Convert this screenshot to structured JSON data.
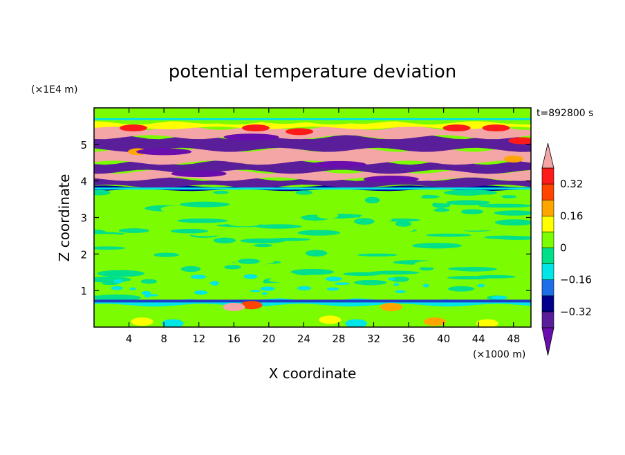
{
  "chart_data": {
    "type": "heatmap",
    "title": "potential temperature deviation",
    "xlabel": "X coordinate",
    "ylabel": "Z coordinate",
    "x_unit": "(×1000 m)",
    "y_unit": "(×1E4 m)",
    "time_label": "t=892800 s",
    "xlim": [
      0,
      50
    ],
    "ylim": [
      0,
      6
    ],
    "x_ticks": [
      4,
      8,
      12,
      16,
      20,
      24,
      28,
      32,
      36,
      40,
      44,
      48
    ],
    "y_ticks": [
      1,
      2,
      3,
      4,
      5
    ],
    "colorbar": {
      "levels": [
        -0.4,
        -0.32,
        -0.24,
        -0.16,
        -0.08,
        0,
        0.08,
        0.16,
        0.24,
        0.32,
        0.4
      ],
      "tick_labels": [
        "0.32",
        "0.16",
        "0",
        "−0.16",
        "−0.32"
      ],
      "tick_values": [
        0.32,
        0.16,
        0,
        -0.16,
        -0.32
      ],
      "colors_low_to_high": [
        "#6a0dad",
        "#5a1e9a",
        "#00008b",
        "#1e6ee8",
        "#00e5e5",
        "#00e08a",
        "#7cfc00",
        "#ffff00",
        "#ffa500",
        "#ff4500",
        "#ff1a1a",
        "#f4a6a6"
      ],
      "under_color": "#6a0dad",
      "over_color": "#f4a6a6"
    },
    "bands": [
      {
        "z": [
          0.0,
          0.2
        ],
        "value": 0.02,
        "description_value": "mixed"
      },
      {
        "z": [
          0.2,
          0.6
        ],
        "value": 0.0
      },
      {
        "z": [
          0.6,
          0.75
        ],
        "value": -0.1
      },
      {
        "z": [
          0.75,
          3.8
        ],
        "value": 0.03
      },
      {
        "z": [
          3.75,
          3.85
        ],
        "value": -0.3
      },
      {
        "z": [
          3.85,
          4.05
        ],
        "value": -0.38
      },
      {
        "z": [
          4.05,
          4.25
        ],
        "value": 0.42
      },
      {
        "z": [
          4.25,
          4.5
        ],
        "value": -0.38
      },
      {
        "z": [
          4.5,
          4.85
        ],
        "value": 0.42
      },
      {
        "z": [
          4.85,
          5.2
        ],
        "value": -0.38
      },
      {
        "z": [
          5.2,
          5.45
        ],
        "value": 0.42
      },
      {
        "z": [
          5.45,
          5.6
        ],
        "value": 0.1
      },
      {
        "z": [
          5.6,
          6.0
        ],
        "value": 0.03
      }
    ]
  }
}
